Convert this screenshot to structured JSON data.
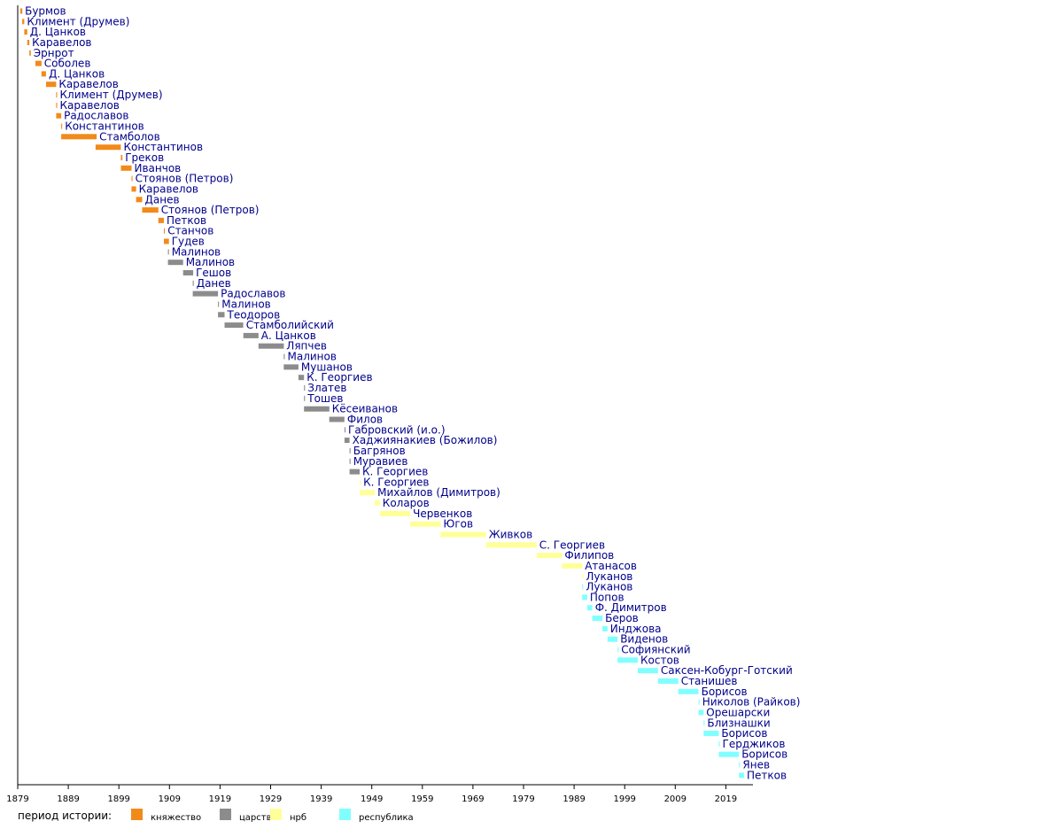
{
  "chart_data": {
    "type": "bar",
    "orientation": "horizontal-timeline",
    "x_ticks": [
      1879,
      1889,
      1899,
      1909,
      1919,
      1929,
      1939,
      1949,
      1959,
      1969,
      1979,
      1989,
      1999,
      2009,
      2019
    ],
    "xlim": [
      1879,
      2027
    ],
    "grid": false,
    "legend_title": "период истории:",
    "legend_placement": "bottom-left",
    "periods": [
      {
        "key": "k",
        "label": "княжество",
        "color": "#f28a1a"
      },
      {
        "key": "c",
        "label": "царство",
        "color": "#8c8c8c"
      },
      {
        "key": "n",
        "label": "нрб",
        "color": "#ffff99"
      },
      {
        "key": "r",
        "label": "республика",
        "color": "#80ffff"
      }
    ],
    "rows": [
      {
        "name": "Бурмов",
        "start": 1879.5,
        "end": 1879.9,
        "period": "k"
      },
      {
        "name": "Климент (Друмев)",
        "start": 1879.9,
        "end": 1880.3,
        "period": "k"
      },
      {
        "name": "Д. Цанков",
        "start": 1880.3,
        "end": 1880.9,
        "period": "k"
      },
      {
        "name": "Каравелов",
        "start": 1880.9,
        "end": 1881.3,
        "period": "k"
      },
      {
        "name": "Эрнрот",
        "start": 1881.3,
        "end": 1881.6,
        "period": "k"
      },
      {
        "name": "Соболев",
        "start": 1882.5,
        "end": 1883.7,
        "period": "k"
      },
      {
        "name": "Д. Цанков",
        "start": 1883.7,
        "end": 1884.6,
        "period": "k"
      },
      {
        "name": "Каравелов",
        "start": 1884.6,
        "end": 1886.6,
        "period": "k"
      },
      {
        "name": "Климент (Друмев)",
        "start": 1886.6,
        "end": 1886.8,
        "period": "k"
      },
      {
        "name": "Каравелов",
        "start": 1886.6,
        "end": 1886.8,
        "period": "k"
      },
      {
        "name": "Радославов",
        "start": 1886.6,
        "end": 1887.6,
        "period": "k"
      },
      {
        "name": "Константинов",
        "start": 1887.6,
        "end": 1887.8,
        "period": "k"
      },
      {
        "name": "Стамболов",
        "start": 1887.6,
        "end": 1894.6,
        "period": "k"
      },
      {
        "name": "Константинов",
        "start": 1894.4,
        "end": 1899.4,
        "period": "k"
      },
      {
        "name": "Греков",
        "start": 1899.4,
        "end": 1899.7,
        "period": "k"
      },
      {
        "name": "Иванчов",
        "start": 1899.4,
        "end": 1901.5,
        "period": "k"
      },
      {
        "name": "Стоянов (Петров)",
        "start": 1901.5,
        "end": 1901.7,
        "period": "k"
      },
      {
        "name": "Каравелов",
        "start": 1901.5,
        "end": 1902.4,
        "period": "k"
      },
      {
        "name": "Данев",
        "start": 1902.4,
        "end": 1903.6,
        "period": "k"
      },
      {
        "name": "Стоянов (Петров)",
        "start": 1903.6,
        "end": 1906.8,
        "period": "k"
      },
      {
        "name": "Петков",
        "start": 1906.8,
        "end": 1907.9,
        "period": "k"
      },
      {
        "name": "Станчов",
        "start": 1907.9,
        "end": 1908.1,
        "period": "k"
      },
      {
        "name": "Гудев",
        "start": 1907.9,
        "end": 1908.9,
        "period": "k"
      },
      {
        "name": "Малинов",
        "start": 1908.7,
        "end": 1908.9,
        "period": "c"
      },
      {
        "name": "Малинов",
        "start": 1908.7,
        "end": 1911.7,
        "period": "c"
      },
      {
        "name": "Гешов",
        "start": 1911.7,
        "end": 1913.7,
        "period": "c"
      },
      {
        "name": "Данев",
        "start": 1913.6,
        "end": 1913.8,
        "period": "c"
      },
      {
        "name": "Радославов",
        "start": 1913.6,
        "end": 1918.6,
        "period": "c"
      },
      {
        "name": "Малинов",
        "start": 1918.6,
        "end": 1918.8,
        "period": "c"
      },
      {
        "name": "Теодоров",
        "start": 1918.6,
        "end": 1919.9,
        "period": "c"
      },
      {
        "name": "Стамболийский",
        "start": 1919.9,
        "end": 1923.6,
        "period": "c"
      },
      {
        "name": "А. Цанков",
        "start": 1923.6,
        "end": 1926.6,
        "period": "c"
      },
      {
        "name": "Ляпчев",
        "start": 1926.6,
        "end": 1931.6,
        "period": "c"
      },
      {
        "name": "Малинов",
        "start": 1931.6,
        "end": 1931.8,
        "period": "c"
      },
      {
        "name": "Мушанов",
        "start": 1931.6,
        "end": 1934.5,
        "period": "c"
      },
      {
        "name": "К. Георгиев",
        "start": 1934.5,
        "end": 1935.6,
        "period": "c"
      },
      {
        "name": "Златев",
        "start": 1935.6,
        "end": 1935.8,
        "period": "c"
      },
      {
        "name": "Тошев",
        "start": 1935.6,
        "end": 1935.8,
        "period": "c"
      },
      {
        "name": "Кёсеиванов",
        "start": 1935.6,
        "end": 1940.6,
        "period": "c"
      },
      {
        "name": "Филов",
        "start": 1940.6,
        "end": 1943.6,
        "period": "c"
      },
      {
        "name": "Габровский (и.о.)",
        "start": 1943.6,
        "end": 1943.8,
        "period": "c"
      },
      {
        "name": "Хаджиянакиев (Божилов)",
        "start": 1943.6,
        "end": 1944.6,
        "period": "c"
      },
      {
        "name": "Багрянов",
        "start": 1944.6,
        "end": 1944.8,
        "period": "c"
      },
      {
        "name": "Муравиев",
        "start": 1944.6,
        "end": 1944.8,
        "period": "c"
      },
      {
        "name": "К. Георгиев",
        "start": 1944.6,
        "end": 1946.6,
        "period": "c"
      },
      {
        "name": "К. Георгиев",
        "start": 1946.6,
        "end": 1946.8,
        "period": "n"
      },
      {
        "name": "Михайлов (Димитров)",
        "start": 1946.6,
        "end": 1949.6,
        "period": "n"
      },
      {
        "name": "Коларов",
        "start": 1949.6,
        "end": 1950.6,
        "period": "n"
      },
      {
        "name": "Червенков",
        "start": 1950.6,
        "end": 1956.6,
        "period": "n"
      },
      {
        "name": "Югов",
        "start": 1956.6,
        "end": 1962.6,
        "period": "n"
      },
      {
        "name": "Живков",
        "start": 1962.6,
        "end": 1971.6,
        "period": "n"
      },
      {
        "name": "С. Георгиев",
        "start": 1971.6,
        "end": 1981.6,
        "period": "n"
      },
      {
        "name": "Филипов",
        "start": 1981.6,
        "end": 1986.6,
        "period": "n"
      },
      {
        "name": "Атанасов",
        "start": 1986.6,
        "end": 1990.6,
        "period": "n"
      },
      {
        "name": "Луканов",
        "start": 1990.6,
        "end": 1990.8,
        "period": "n"
      },
      {
        "name": "Луканов",
        "start": 1990.6,
        "end": 1990.8,
        "period": "r"
      },
      {
        "name": "Попов",
        "start": 1990.6,
        "end": 1991.6,
        "period": "r"
      },
      {
        "name": "Ф. Димитров",
        "start": 1991.6,
        "end": 1992.6,
        "period": "r"
      },
      {
        "name": "Беров",
        "start": 1992.6,
        "end": 1994.6,
        "period": "r"
      },
      {
        "name": "Инджова",
        "start": 1994.6,
        "end": 1995.6,
        "period": "r"
      },
      {
        "name": "Виденов",
        "start": 1995.6,
        "end": 1997.6,
        "period": "r"
      },
      {
        "name": "Софиянский",
        "start": 1997.6,
        "end": 1997.8,
        "period": "r"
      },
      {
        "name": "Костов",
        "start": 1997.6,
        "end": 2001.6,
        "period": "r"
      },
      {
        "name": "Саксен-Кобург-Готский",
        "start": 2001.6,
        "end": 2005.6,
        "period": "r"
      },
      {
        "name": "Станишев",
        "start": 2005.6,
        "end": 2009.6,
        "period": "r"
      },
      {
        "name": "Борисов",
        "start": 2009.6,
        "end": 2013.6,
        "period": "r"
      },
      {
        "name": "Николов (Райков)",
        "start": 2013.6,
        "end": 2013.8,
        "period": "r"
      },
      {
        "name": "Орешарски",
        "start": 2013.6,
        "end": 2014.6,
        "period": "r"
      },
      {
        "name": "Близнашки",
        "start": 2014.6,
        "end": 2014.8,
        "period": "r"
      },
      {
        "name": "Борисов",
        "start": 2014.6,
        "end": 2017.6,
        "period": "r"
      },
      {
        "name": "Герджиков",
        "start": 2017.6,
        "end": 2017.8,
        "period": "r"
      },
      {
        "name": "Борисов",
        "start": 2017.6,
        "end": 2021.6,
        "period": "r"
      },
      {
        "name": "Янев",
        "start": 2021.6,
        "end": 2021.8,
        "period": "r"
      },
      {
        "name": "Петков",
        "start": 2021.6,
        "end": 2022.6,
        "period": "r"
      }
    ]
  }
}
